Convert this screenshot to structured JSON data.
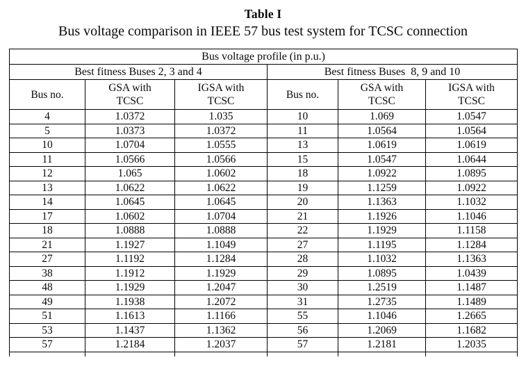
{
  "page": {
    "title": "Table I",
    "caption": "Bus voltage comparison in IEEE 57 bus test system for TCSC connection"
  },
  "table": {
    "main_header": "Bus voltage profile (in p.u.)",
    "group_headers": [
      "Best fitness Buses 2, 3 and 4",
      "Best fitness Buses  8, 9 and 10"
    ],
    "columns": [
      "Bus no.",
      "GSA with\nTCSC",
      "IGSA with\nTCSC",
      "Bus no.",
      "GSA with\nTCSC",
      "IGSA with\nTCSC"
    ],
    "rows": [
      [
        "4",
        "1.0372",
        "1.035",
        "10",
        "1.069",
        "1.0547"
      ],
      [
        "5",
        "1.0373",
        "1.0372",
        "11",
        "1.0564",
        "1.0564"
      ],
      [
        "10",
        "1.0704",
        "1.0555",
        "13",
        "1.0619",
        "1.0619"
      ],
      [
        "11",
        "1.0566",
        "1.0566",
        "15",
        "1.0547",
        "1.0644"
      ],
      [
        "12",
        "1.065",
        "1.0602",
        "18",
        "1.0922",
        "1.0895"
      ],
      [
        "13",
        "1.0622",
        "1.0622",
        "19",
        "1.1259",
        "1.0922"
      ],
      [
        "14",
        "1.0645",
        "1.0645",
        "20",
        "1.1363",
        "1.1032"
      ],
      [
        "17",
        "1.0602",
        "1.0704",
        "21",
        "1.1926",
        "1.1046"
      ],
      [
        "18",
        "1.0888",
        "1.0888",
        "22",
        "1.1929",
        "1.1158"
      ],
      [
        "21",
        "1.1927",
        "1.1049",
        "27",
        "1.1195",
        "1.1284"
      ],
      [
        "27",
        "1.1192",
        "1.1284",
        "28",
        "1.1032",
        "1.1363"
      ],
      [
        "38",
        "1.1912",
        "1.1929",
        "29",
        "1.0895",
        "1.0439"
      ],
      [
        "48",
        "1.1929",
        "1.2047",
        "30",
        "1.2519",
        "1.1487"
      ],
      [
        "49",
        "1.1938",
        "1.2072",
        "31",
        "1.2735",
        "1.1489"
      ],
      [
        "51",
        "1.1613",
        "1.1166",
        "55",
        "1.1046",
        "1.2665"
      ],
      [
        "53",
        "1.1437",
        "1.1362",
        "56",
        "1.2069",
        "1.1682"
      ],
      [
        "57",
        "1.2184",
        "1.2037",
        "57",
        "1.2181",
        "1.2035"
      ]
    ]
  }
}
